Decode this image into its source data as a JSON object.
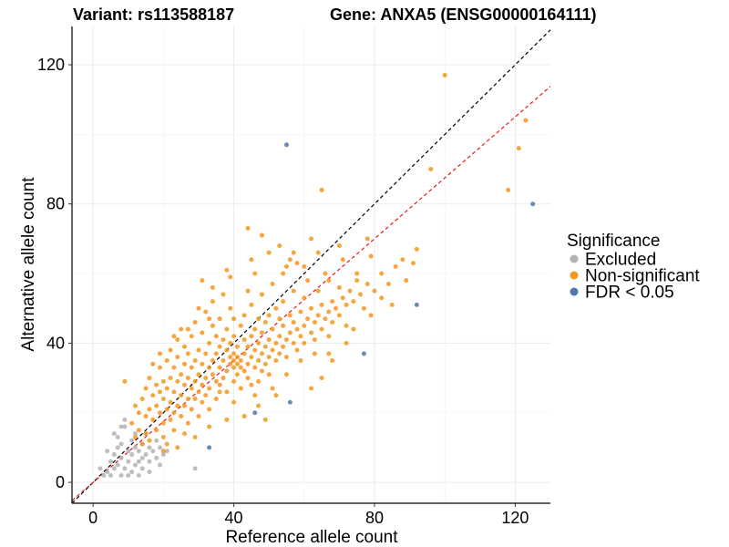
{
  "chart_data": {
    "type": "scatter",
    "title_left": "Variant: rs113588187",
    "title_right": "Gene: ANXA5 (ENSG00000164111)",
    "xlabel": "Reference allele count",
    "ylabel": "Alternative allele count",
    "xlim": [
      -6,
      130
    ],
    "ylim": [
      -6,
      131
    ],
    "xticks": [
      0,
      40,
      80,
      120
    ],
    "yticks": [
      0,
      40,
      80,
      120
    ],
    "grid": true,
    "legend": {
      "title": "Significance",
      "placement": "right",
      "entries": [
        {
          "label": "Excluded",
          "color": "#b3b3b3"
        },
        {
          "label": "Non-significant",
          "color": "#f5961e"
        },
        {
          "label": "FDR < 0.05",
          "color": "#4f78a8"
        }
      ]
    },
    "reference_lines": [
      {
        "name": "identity",
        "color": "#000000",
        "slope": 1.0,
        "intercept": 0
      },
      {
        "name": "fit",
        "color": "#e41a1c",
        "slope": 0.875,
        "intercept": 0
      }
    ],
    "series": [
      {
        "name": "Excluded",
        "color": "#b3b3b3",
        "points": [
          [
            2,
            4
          ],
          [
            3,
            2
          ],
          [
            4,
            3
          ],
          [
            5,
            6
          ],
          [
            5,
            2
          ],
          [
            6,
            4
          ],
          [
            6,
            8
          ],
          [
            7,
            10
          ],
          [
            7,
            5
          ],
          [
            7,
            13
          ],
          [
            8,
            2
          ],
          [
            8,
            7
          ],
          [
            8,
            11
          ],
          [
            9,
            4
          ],
          [
            9,
            16
          ],
          [
            9,
            18
          ],
          [
            10,
            6
          ],
          [
            10,
            9
          ],
          [
            11,
            8
          ],
          [
            11,
            3
          ],
          [
            12,
            10
          ],
          [
            12,
            5
          ],
          [
            13,
            9
          ],
          [
            13,
            6
          ],
          [
            14,
            4
          ],
          [
            14,
            11
          ],
          [
            15,
            8
          ],
          [
            15,
            14
          ],
          [
            16,
            10
          ],
          [
            16,
            6
          ],
          [
            17,
            9
          ],
          [
            18,
            12
          ],
          [
            18,
            7
          ],
          [
            19,
            10
          ],
          [
            20,
            8
          ],
          [
            6,
            14
          ],
          [
            4,
            9
          ],
          [
            11,
            12
          ],
          [
            13,
            2
          ],
          [
            10,
            2
          ],
          [
            16,
            3
          ],
          [
            21,
            9
          ],
          [
            29,
            4
          ],
          [
            19,
            5
          ],
          [
            12,
            14
          ],
          [
            8,
            16
          ],
          [
            14,
            7
          ]
        ]
      },
      {
        "name": "Non-significant",
        "color": "#f5961e",
        "points": [
          [
            9,
            29
          ],
          [
            11,
            17
          ],
          [
            12,
            22
          ],
          [
            12,
            13
          ],
          [
            13,
            20
          ],
          [
            13,
            15
          ],
          [
            14,
            11
          ],
          [
            14,
            24
          ],
          [
            15,
            19
          ],
          [
            15,
            27
          ],
          [
            15,
            14
          ],
          [
            16,
            21
          ],
          [
            16,
            30
          ],
          [
            16,
            12
          ],
          [
            17,
            18
          ],
          [
            17,
            25
          ],
          [
            17,
            34
          ],
          [
            18,
            22
          ],
          [
            18,
            15
          ],
          [
            18,
            28
          ],
          [
            19,
            20
          ],
          [
            19,
            26
          ],
          [
            19,
            33
          ],
          [
            20,
            17
          ],
          [
            20,
            24
          ],
          [
            20,
            29
          ],
          [
            20,
            13
          ],
          [
            21,
            21
          ],
          [
            21,
            27
          ],
          [
            21,
            35
          ],
          [
            21,
            11
          ],
          [
            22,
            23
          ],
          [
            22,
            30
          ],
          [
            22,
            18
          ],
          [
            22,
            38
          ],
          [
            23,
            20
          ],
          [
            23,
            26
          ],
          [
            23,
            33
          ],
          [
            23,
            15
          ],
          [
            24,
            22
          ],
          [
            24,
            29
          ],
          [
            24,
            36
          ],
          [
            24,
            41
          ],
          [
            25,
            25
          ],
          [
            25,
            31
          ],
          [
            25,
            19
          ],
          [
            25,
            44
          ],
          [
            26,
            28
          ],
          [
            26,
            34
          ],
          [
            26,
            22
          ],
          [
            26,
            39
          ],
          [
            27,
            24
          ],
          [
            27,
            30
          ],
          [
            27,
            37
          ],
          [
            27,
            17
          ],
          [
            28,
            27
          ],
          [
            28,
            33
          ],
          [
            28,
            42
          ],
          [
            28,
            21
          ],
          [
            29,
            29
          ],
          [
            29,
            35
          ],
          [
            29,
            24
          ],
          [
            29,
            46
          ],
          [
            30,
            31
          ],
          [
            30,
            38
          ],
          [
            30,
            26
          ],
          [
            30,
            19
          ],
          [
            31,
            28
          ],
          [
            31,
            34
          ],
          [
            31,
            43
          ],
          [
            31,
            23
          ],
          [
            32,
            30
          ],
          [
            32,
            37
          ],
          [
            32,
            25
          ],
          [
            32,
            49
          ],
          [
            33,
            33
          ],
          [
            33,
            40
          ],
          [
            33,
            27
          ],
          [
            33,
            21
          ],
          [
            34,
            35
          ],
          [
            34,
            31
          ],
          [
            34,
            45
          ],
          [
            34,
            52
          ],
          [
            35,
            29
          ],
          [
            35,
            37
          ],
          [
            35,
            42
          ],
          [
            35,
            24
          ],
          [
            36,
            33
          ],
          [
            36,
            39
          ],
          [
            36,
            28
          ],
          [
            36,
            47
          ],
          [
            37,
            35
          ],
          [
            37,
            41
          ],
          [
            37,
            30
          ],
          [
            37,
            54
          ],
          [
            38,
            32
          ],
          [
            38,
            38
          ],
          [
            38,
            44
          ],
          [
            38,
            26
          ],
          [
            39,
            34
          ],
          [
            39,
            40
          ],
          [
            39,
            36
          ],
          [
            39,
            50
          ],
          [
            40,
            33
          ],
          [
            40,
            37
          ],
          [
            40,
            35
          ],
          [
            40,
            42
          ],
          [
            40,
            29
          ],
          [
            41,
            34
          ],
          [
            41,
            36
          ],
          [
            41,
            39
          ],
          [
            41,
            31
          ],
          [
            42,
            35
          ],
          [
            42,
            33
          ],
          [
            42,
            45
          ],
          [
            42,
            27
          ],
          [
            43,
            37
          ],
          [
            43,
            32
          ],
          [
            43,
            48
          ],
          [
            43,
            41
          ],
          [
            44,
            34
          ],
          [
            44,
            39
          ],
          [
            44,
            30
          ],
          [
            44,
            55
          ],
          [
            45,
            36
          ],
          [
            45,
            42
          ],
          [
            45,
            28
          ],
          [
            45,
            51
          ],
          [
            46,
            38
          ],
          [
            46,
            33
          ],
          [
            46,
            44
          ],
          [
            46,
            60
          ],
          [
            47,
            35
          ],
          [
            47,
            40
          ],
          [
            47,
            29
          ],
          [
            47,
            47
          ],
          [
            48,
            37
          ],
          [
            48,
            43
          ],
          [
            48,
            32
          ],
          [
            48,
            54
          ],
          [
            49,
            39
          ],
          [
            49,
            34
          ],
          [
            49,
            46
          ],
          [
            50,
            41
          ],
          [
            50,
            36
          ],
          [
            50,
            48
          ],
          [
            50,
            31
          ],
          [
            51,
            38
          ],
          [
            51,
            44
          ],
          [
            51,
            57
          ],
          [
            52,
            40
          ],
          [
            52,
            35
          ],
          [
            52,
            50
          ],
          [
            53,
            42
          ],
          [
            53,
            37
          ],
          [
            53,
            47
          ],
          [
            54,
            39
          ],
          [
            54,
            45
          ],
          [
            54,
            52
          ],
          [
            55,
            41
          ],
          [
            55,
            36
          ],
          [
            55,
            62
          ],
          [
            56,
            43
          ],
          [
            56,
            48
          ],
          [
            57,
            40
          ],
          [
            57,
            46
          ],
          [
            57,
            55
          ],
          [
            58,
            44
          ],
          [
            58,
            38
          ],
          [
            59,
            42
          ],
          [
            59,
            49
          ],
          [
            60,
            45
          ],
          [
            60,
            53
          ],
          [
            60,
            40
          ],
          [
            61,
            47
          ],
          [
            61,
            58
          ],
          [
            62,
            43
          ],
          [
            62,
            50
          ],
          [
            63,
            46
          ],
          [
            63,
            41
          ],
          [
            64,
            48
          ],
          [
            64,
            55
          ],
          [
            65,
            44
          ],
          [
            65,
            51
          ],
          [
            66,
            47
          ],
          [
            66,
            60
          ],
          [
            67,
            49
          ],
          [
            67,
            42
          ],
          [
            68,
            52
          ],
          [
            68,
            46
          ],
          [
            69,
            50
          ],
          [
            70,
            48
          ],
          [
            70,
            56
          ],
          [
            71,
            53
          ],
          [
            72,
            51
          ],
          [
            72,
            45
          ],
          [
            73,
            55
          ],
          [
            74,
            52
          ],
          [
            75,
            58
          ],
          [
            76,
            54
          ],
          [
            77,
            50
          ],
          [
            78,
            57
          ],
          [
            80,
            55
          ],
          [
            82,
            60
          ],
          [
            84,
            57
          ],
          [
            88,
            64
          ],
          [
            91,
            63
          ],
          [
            92,
            67
          ],
          [
            39,
            59
          ],
          [
            44,
            73
          ],
          [
            48,
            71
          ],
          [
            53,
            68
          ],
          [
            57,
            66
          ],
          [
            58,
            63
          ],
          [
            62,
            70
          ],
          [
            65,
            84
          ],
          [
            56,
            64
          ],
          [
            100,
            117
          ],
          [
            118,
            84
          ],
          [
            121,
            96
          ],
          [
            123,
            104
          ],
          [
            96,
            90
          ],
          [
            89,
            58
          ],
          [
            79,
            65
          ],
          [
            86,
            62
          ],
          [
            71,
            64
          ],
          [
            67,
            58
          ],
          [
            47,
            22
          ],
          [
            49,
            18
          ],
          [
            52,
            25
          ],
          [
            43,
            19
          ],
          [
            38,
            18
          ],
          [
            55,
            31
          ],
          [
            24,
            10
          ],
          [
            20,
            9
          ],
          [
            29,
            13
          ],
          [
            33,
            16
          ],
          [
            26,
            14
          ],
          [
            36,
            26
          ],
          [
            40,
            23
          ],
          [
            59,
            35
          ],
          [
            63,
            37
          ],
          [
            51,
            27
          ],
          [
            46,
            25
          ],
          [
            62,
            27
          ],
          [
            67,
            37
          ],
          [
            74,
            44
          ],
          [
            33,
            47
          ],
          [
            30,
            50
          ],
          [
            34,
            56
          ],
          [
            27,
            44
          ],
          [
            23,
            42
          ],
          [
            19,
            37
          ],
          [
            40,
            47
          ],
          [
            45,
            64
          ],
          [
            31,
            58
          ],
          [
            50,
            66
          ],
          [
            38,
            61
          ],
          [
            54,
            60
          ],
          [
            64,
            66
          ],
          [
            60,
            62
          ],
          [
            70,
            68
          ],
          [
            78,
            70
          ],
          [
            75,
            60
          ],
          [
            82,
            53
          ],
          [
            85,
            51
          ],
          [
            79,
            48
          ],
          [
            72,
            40
          ],
          [
            68,
            35
          ],
          [
            65,
            30
          ]
        ]
      },
      {
        "name": "FDR < 0.05",
        "color": "#4f78a8",
        "points": [
          [
            55,
            97
          ],
          [
            125,
            80
          ],
          [
            92,
            51
          ],
          [
            77,
            37
          ],
          [
            56,
            23
          ],
          [
            46,
            20
          ],
          [
            33,
            10
          ]
        ]
      }
    ]
  }
}
